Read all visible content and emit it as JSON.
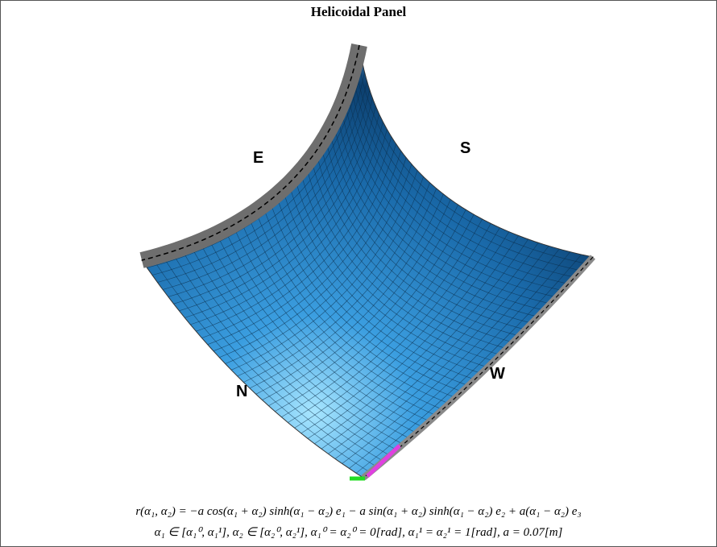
{
  "title": "Helicoidal Panel",
  "labels": {
    "E": "E",
    "S": "S",
    "N": "N",
    "W": "W"
  },
  "formula": [
    "r(α₁, α₂) = −a cos(α₁ + α₂) sinh(α₁ − α₂) e₁ − a sin(α₁ + α₂) sinh(α₁ − α₂) e₂ + a(α₁ − α₂) e₃",
    "α₁ ∈ [α₁⁰, α₁¹], α₂ ∈ [α₂⁰, α₂¹], α₁⁰ = α₂⁰ = 0[rad], α₁¹ = α₂¹ = 1[rad], a = 0.07[m]"
  ]
}
